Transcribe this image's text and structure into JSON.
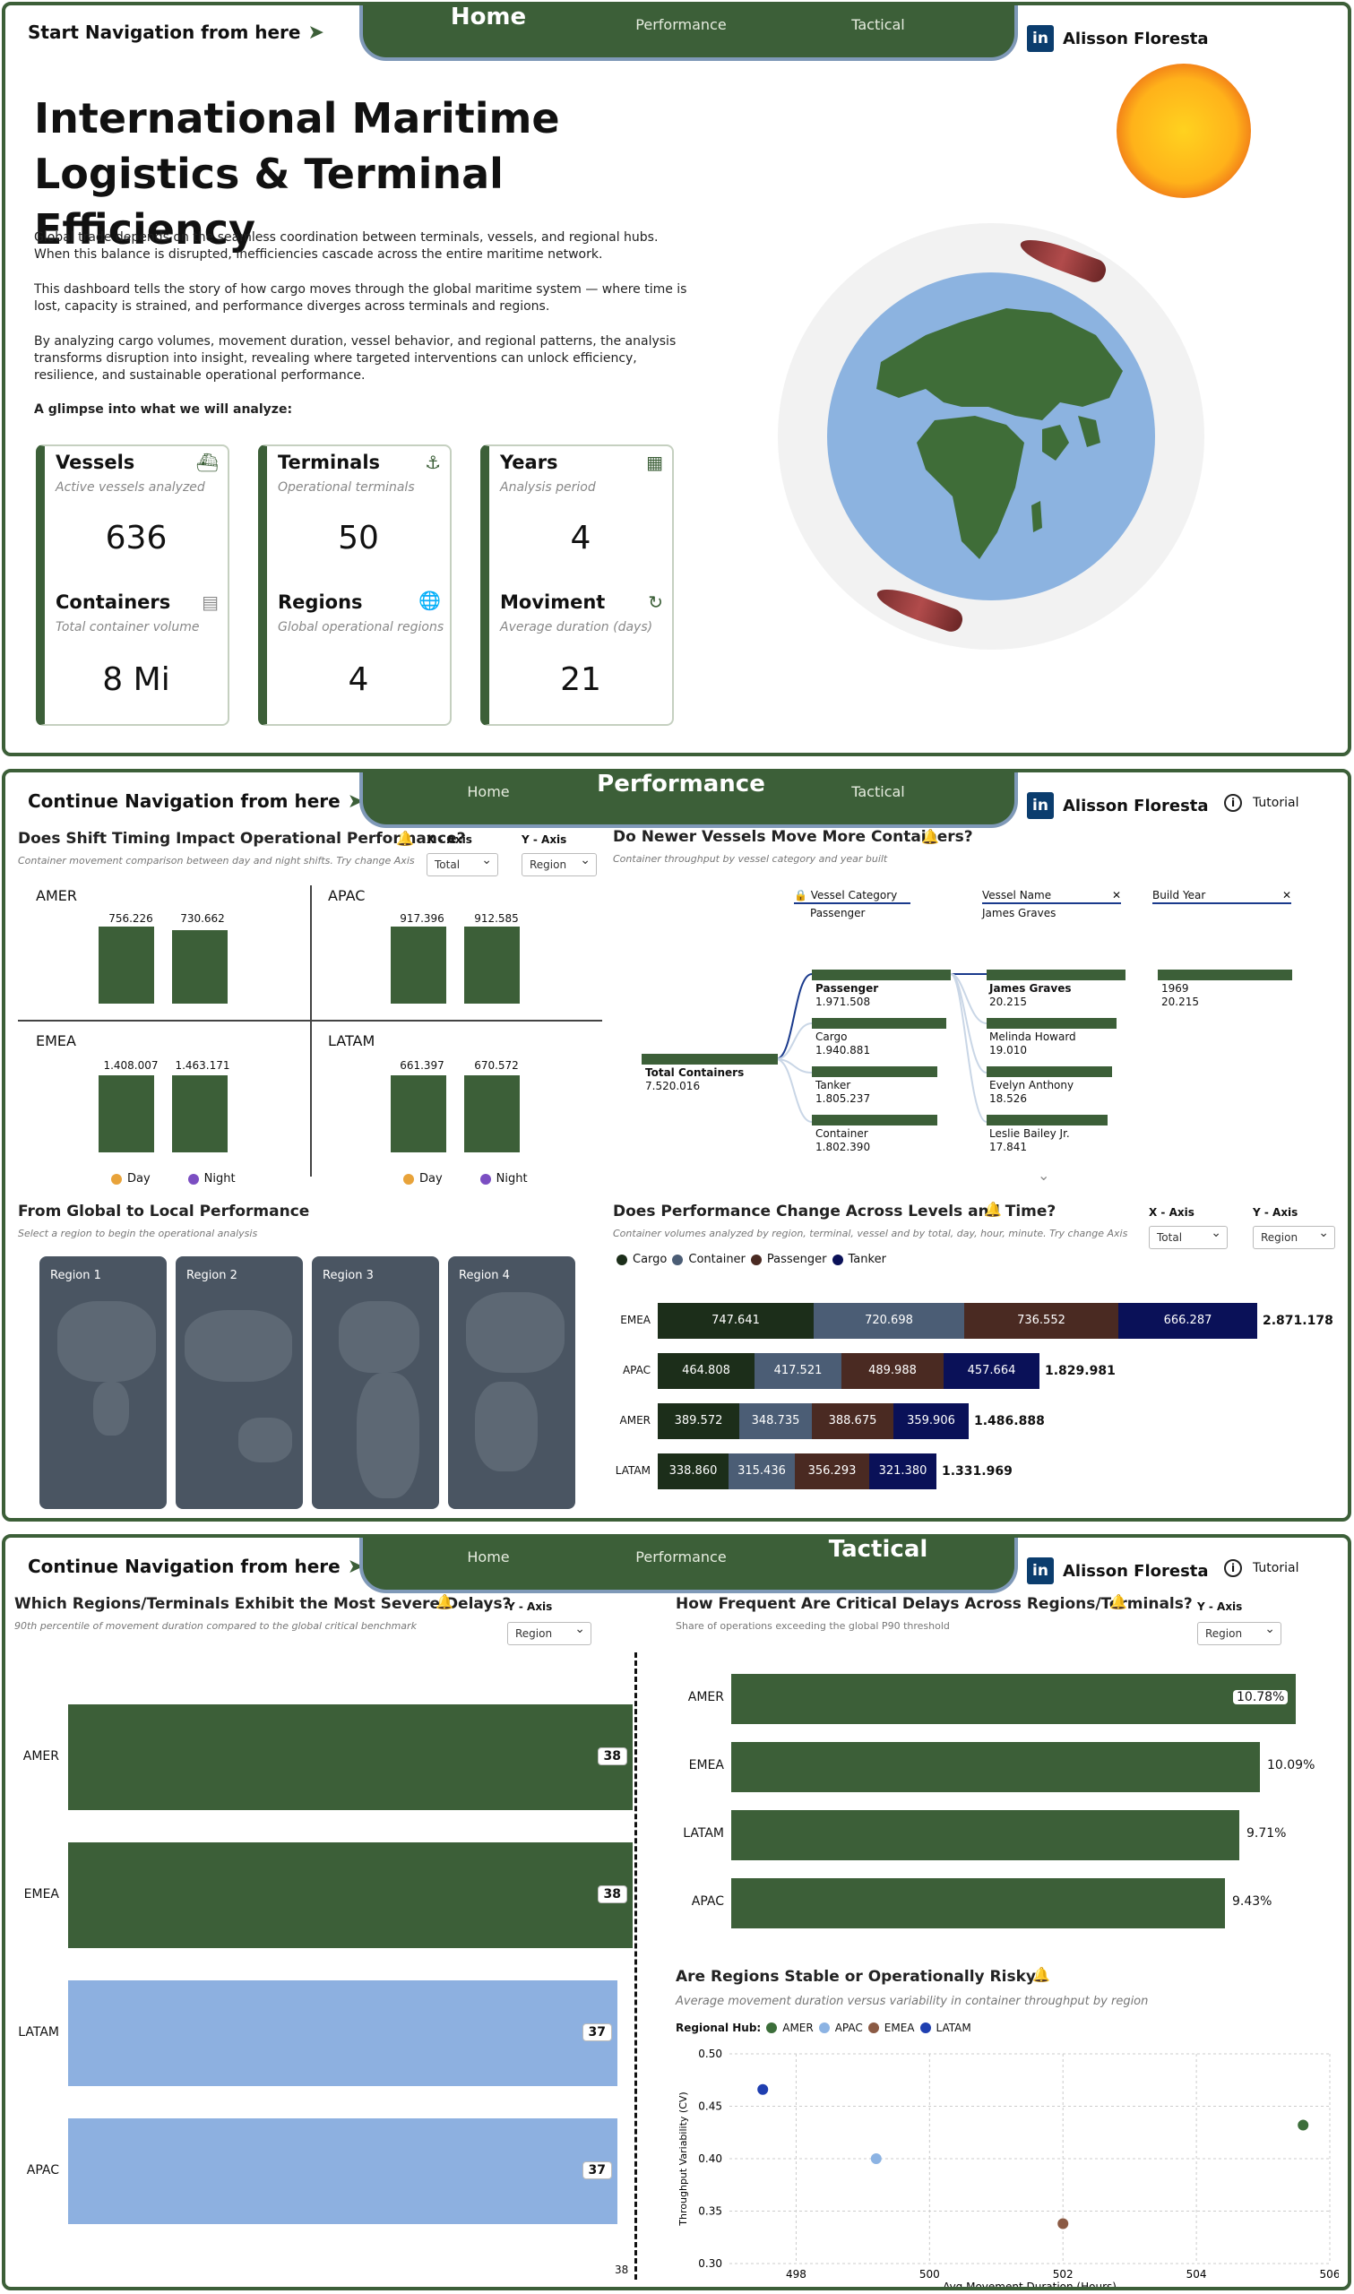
{
  "nav": {
    "home": "Home",
    "performance": "Performance",
    "tactical": "Tactical",
    "start_hint": "Start Navigation from here",
    "continue_hint": "Continue Navigation from here",
    "linkedin": "Alisson Floresta",
    "tutorial": "Tutorial",
    "li_logo": "in",
    "info_glyph": "i"
  },
  "home": {
    "title": "International Maritime Logistics & Terminal Efficiency",
    "p1": "Global trade depends on the seamless coordination between terminals, vessels, and regional hubs. When this balance is disrupted, inefficiencies cascade across the entire maritime network.",
    "p2": "This dashboard tells the story of how cargo moves through the global maritime system — where time is lost, capacity is strained, and performance diverges across terminals and regions.",
    "p3": "By analyzing cargo volumes, movement duration, vessel behavior, and regional patterns, the analysis transforms disruption into insight, revealing where targeted interventions can unlock efficiency, resilience, and sustainable operational performance.",
    "glimpse": "A glimpse into what we will analyze:",
    "cards": [
      {
        "t1": "Vessels",
        "s1": "Active vessels analyzed",
        "v1": "636",
        "t2": "Containers",
        "s2": "Total container volume",
        "v2": "8 Mi"
      },
      {
        "t1": "Terminals",
        "s1": "Operational terminals",
        "v1": "50",
        "t2": "Regions",
        "s2": "Global operational regions",
        "v2": "4"
      },
      {
        "t1": "Years",
        "s1": "Analysis period",
        "v1": "4",
        "t2": "Moviment",
        "s2": "Average duration (days)",
        "v2": "21"
      }
    ]
  },
  "perf": {
    "shift_title": "Does Shift Timing Impact Operational Performance?",
    "shift_sub": "Container movement comparison between day and night shifts. Try change Axis",
    "xaxis": "X - Axis",
    "yaxis": "Y - Axis",
    "total": "Total",
    "region": "Region",
    "day": "Day",
    "night": "Night",
    "quads": [
      {
        "name": "AMER",
        "day": "756.226",
        "night": "730.662"
      },
      {
        "name": "APAC",
        "day": "917.396",
        "night": "912.585"
      },
      {
        "name": "EMEA",
        "day": "1.408.007",
        "night": "1.463.171"
      },
      {
        "name": "LATAM",
        "day": "661.397",
        "night": "670.572"
      }
    ],
    "vessel_title": "Do Newer Vessels Move More Containers?",
    "vessel_sub": "Container throughput by vessel category and year built",
    "decomp": {
      "h1": "Vessel Category",
      "h1v": "Passenger",
      "h2": "Vessel Name",
      "h2v": "James Graves",
      "h3": "Build Year",
      "root": "Total Containers",
      "root_v": "7.520.016",
      "cats": [
        {
          "n": "Passenger",
          "v": "1.971.508"
        },
        {
          "n": "Cargo",
          "v": "1.940.881"
        },
        {
          "n": "Tanker",
          "v": "1.805.237"
        },
        {
          "n": "Container",
          "v": "1.802.390"
        }
      ],
      "names": [
        {
          "n": "James Graves",
          "v": "20.215"
        },
        {
          "n": "Melinda Howard",
          "v": "19.010"
        },
        {
          "n": "Evelyn Anthony",
          "v": "18.526"
        },
        {
          "n": "Leslie Bailey Jr.",
          "v": "17.841"
        }
      ],
      "year": "1969",
      "year_v": "20.215"
    },
    "global_title": "From Global to Local Performance",
    "global_sub": "Select a region to begin the operational analysis",
    "regions": [
      "Region 1",
      "Region 2",
      "Region 3",
      "Region 4"
    ],
    "levels_title": "Does Performance Change Across Levels and Time?",
    "levels_sub": "Container volumes analyzed by region, terminal, vessel and by total, day, hour, minute. Try change Axis",
    "legend": [
      "Cargo",
      "Container",
      "Passenger",
      "Tanker"
    ],
    "colors": {
      "cargo": "#1c2e1a",
      "container": "#4b5d75",
      "passenger": "#4a2a22",
      "tanker": "#0a1158"
    }
  },
  "tact": {
    "sev_title": "Which Regions/Terminals Exhibit the Most Severe Delays?",
    "sev_sub": "90th percentile of movement duration compared to the global critical benchmark",
    "sev_bench": "38",
    "freq_title": "How Frequent Are Critical Delays Across Regions/Terminals?",
    "freq_sub": "Share of operations exceeding the global P90 threshold",
    "stab_title": "Are Regions Stable or Operationally Risky?",
    "stab_sub": "Average movement duration versus variability in container throughput by region",
    "hub_label": "Regional Hub:"
  },
  "chart_data": [
    {
      "type": "bar",
      "title": "Does Shift Timing Impact Operational Performance?",
      "categories": [
        "AMER",
        "APAC",
        "EMEA",
        "LATAM"
      ],
      "series": [
        {
          "name": "Day",
          "values": [
            756226,
            917396,
            1408007,
            661397
          ]
        },
        {
          "name": "Night",
          "values": [
            730662,
            912585,
            1463171,
            670572
          ]
        }
      ]
    },
    {
      "type": "bar",
      "title": "Does Performance Change Across Levels and Time?",
      "stacked": true,
      "orientation": "horizontal",
      "categories": [
        "EMEA",
        "APAC",
        "AMER",
        "LATAM"
      ],
      "series": [
        {
          "name": "Cargo",
          "values": [
            747641,
            464808,
            389572,
            338860
          ],
          "labels": [
            "747.641",
            "464.808",
            "389.572",
            "338.860"
          ]
        },
        {
          "name": "Container",
          "values": [
            720698,
            417521,
            348735,
            315436
          ],
          "labels": [
            "720.698",
            "417.521",
            "348.735",
            "315.436"
          ]
        },
        {
          "name": "Passenger",
          "values": [
            736552,
            489988,
            388675,
            356293
          ],
          "labels": [
            "736.552",
            "489.988",
            "388.675",
            "356.293"
          ]
        },
        {
          "name": "Tanker",
          "values": [
            666287,
            457664,
            359906,
            321380
          ],
          "labels": [
            "666.287",
            "457.664",
            "359.906",
            "321.380"
          ]
        }
      ],
      "totals": [
        "2.871.178",
        "1.829.981",
        "1.486.888",
        "1.331.969"
      ]
    },
    {
      "type": "bar",
      "title": "Which Regions/Terminals Exhibit the Most Severe Delays?",
      "orientation": "horizontal",
      "categories": [
        "AMER",
        "EMEA",
        "LATAM",
        "APAC"
      ],
      "values": [
        38,
        38,
        37,
        37
      ],
      "benchmark": 38
    },
    {
      "type": "bar",
      "title": "How Frequent Are Critical Delays Across Regions/Terminals?",
      "orientation": "horizontal",
      "categories": [
        "AMER",
        "EMEA",
        "LATAM",
        "APAC"
      ],
      "values": [
        10.78,
        10.09,
        9.71,
        9.43
      ],
      "labels": [
        "10.78%",
        "10.09%",
        "9.71%",
        "9.43%"
      ]
    },
    {
      "type": "scatter",
      "title": "Are Regions Stable or Operationally Risky?",
      "xlabel": "Avg Movement Duration (Hours)",
      "ylabel": "Throughput Variability (CV)",
      "xlim": [
        497,
        506
      ],
      "ylim": [
        0.3,
        0.5
      ],
      "xticks": [
        "498",
        "500",
        "502",
        "504",
        "506"
      ],
      "yticks": [
        "0.50",
        "0.45",
        "0.40",
        "0.35",
        "0.30"
      ],
      "series": [
        {
          "name": "AMER",
          "x": 505.6,
          "y": 0.432,
          "color": "#3c6e3a"
        },
        {
          "name": "APAC",
          "x": 499.2,
          "y": 0.4,
          "color": "#8cb3e3"
        },
        {
          "name": "EMEA",
          "x": 502.0,
          "y": 0.338,
          "color": "#8b5a44"
        },
        {
          "name": "LATAM",
          "x": 497.5,
          "y": 0.466,
          "color": "#1f3fb0"
        }
      ]
    }
  ]
}
